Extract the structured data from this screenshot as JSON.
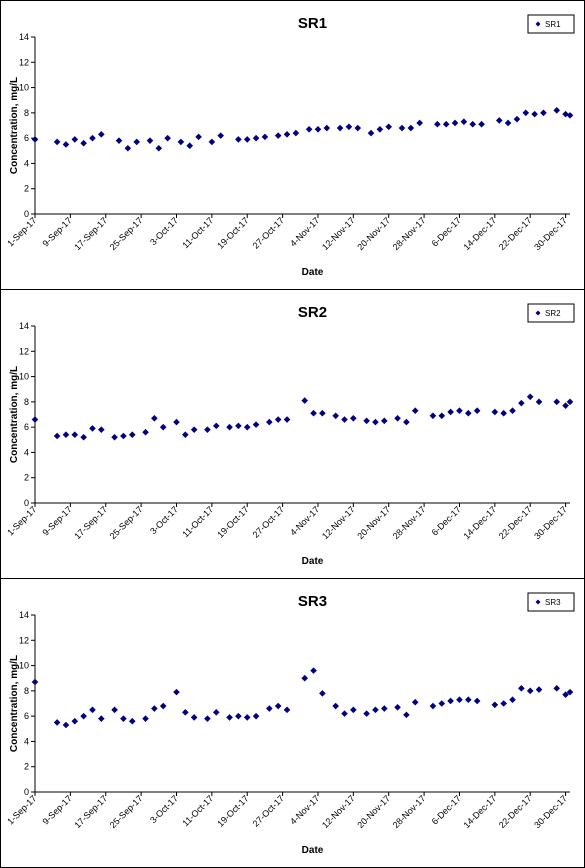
{
  "chart_data": [
    {
      "type": "scatter",
      "title": "SR1",
      "xlabel": "Date",
      "ylabel": "Concentration, mg/L",
      "ylim": [
        0,
        14
      ],
      "yticks": [
        "0",
        "2",
        "4",
        "6",
        "8",
        "10",
        "12",
        "14"
      ],
      "xlim": [
        "2017-09-01",
        "2017-12-31"
      ],
      "xticks": [
        "1-Sep-17",
        "9-Sep-17",
        "17-Sep-17",
        "25-Sep-17",
        "3-Oct-17",
        "11-Oct-17",
        "19-Oct-17",
        "27-Oct-17",
        "4-Nov-17",
        "12-Nov-17",
        "20-Nov-17",
        "28-Nov-17",
        "6-Dec-17",
        "14-Dec-17",
        "22-Dec-17",
        "30-Dec-17"
      ],
      "legend": "top-right",
      "marker_color": "#000080",
      "series": [
        {
          "name": "SR1",
          "points": [
            [
              "2017-09-01",
              5.9
            ],
            [
              "2017-09-06",
              5.7
            ],
            [
              "2017-09-08",
              5.5
            ],
            [
              "2017-09-10",
              5.9
            ],
            [
              "2017-09-12",
              5.6
            ],
            [
              "2017-09-14",
              6.0
            ],
            [
              "2017-09-16",
              6.3
            ],
            [
              "2017-09-20",
              5.8
            ],
            [
              "2017-09-22",
              5.2
            ],
            [
              "2017-09-24",
              5.7
            ],
            [
              "2017-09-27",
              5.8
            ],
            [
              "2017-09-29",
              5.2
            ],
            [
              "2017-10-01",
              6.0
            ],
            [
              "2017-10-04",
              5.7
            ],
            [
              "2017-10-06",
              5.4
            ],
            [
              "2017-10-08",
              6.1
            ],
            [
              "2017-10-11",
              5.7
            ],
            [
              "2017-10-13",
              6.2
            ],
            [
              "2017-10-17",
              5.9
            ],
            [
              "2017-10-19",
              5.9
            ],
            [
              "2017-10-21",
              6.0
            ],
            [
              "2017-10-23",
              6.1
            ],
            [
              "2017-10-26",
              6.2
            ],
            [
              "2017-10-28",
              6.3
            ],
            [
              "2017-10-30",
              6.4
            ],
            [
              "2017-11-02",
              6.7
            ],
            [
              "2017-11-04",
              6.7
            ],
            [
              "2017-11-06",
              6.8
            ],
            [
              "2017-11-09",
              6.8
            ],
            [
              "2017-11-11",
              6.9
            ],
            [
              "2017-11-13",
              6.8
            ],
            [
              "2017-11-16",
              6.4
            ],
            [
              "2017-11-18",
              6.7
            ],
            [
              "2017-11-20",
              6.9
            ],
            [
              "2017-11-23",
              6.8
            ],
            [
              "2017-11-25",
              6.8
            ],
            [
              "2017-11-27",
              7.2
            ],
            [
              "2017-12-01",
              7.1
            ],
            [
              "2017-12-03",
              7.1
            ],
            [
              "2017-12-05",
              7.2
            ],
            [
              "2017-12-07",
              7.3
            ],
            [
              "2017-12-09",
              7.1
            ],
            [
              "2017-12-11",
              7.1
            ],
            [
              "2017-12-15",
              7.4
            ],
            [
              "2017-12-17",
              7.2
            ],
            [
              "2017-12-19",
              7.5
            ],
            [
              "2017-12-21",
              8.0
            ],
            [
              "2017-12-23",
              7.9
            ],
            [
              "2017-12-25",
              8.0
            ],
            [
              "2017-12-28",
              8.2
            ],
            [
              "2017-12-30",
              7.9
            ],
            [
              "2017-12-31",
              7.8
            ]
          ]
        }
      ]
    },
    {
      "type": "scatter",
      "title": "SR2",
      "xlabel": "Date",
      "ylabel": "Concentration, mg/L",
      "ylim": [
        0,
        14
      ],
      "yticks": [
        "0",
        "2",
        "4",
        "6",
        "8",
        "10",
        "12",
        "14"
      ],
      "xlim": [
        "2017-09-01",
        "2017-12-31"
      ],
      "xticks": [
        "1-Sep-17",
        "9-Sep-17",
        "17-Sep-17",
        "25-Sep-17",
        "3-Oct-17",
        "11-Oct-17",
        "19-Oct-17",
        "27-Oct-17",
        "4-Nov-17",
        "12-Nov-17",
        "20-Nov-17",
        "28-Nov-17",
        "6-Dec-17",
        "14-Dec-17",
        "22-Dec-17",
        "30-Dec-17"
      ],
      "legend": "top-right",
      "marker_color": "#000080",
      "series": [
        {
          "name": "SR2",
          "points": [
            [
              "2017-09-01",
              6.6
            ],
            [
              "2017-09-06",
              5.3
            ],
            [
              "2017-09-08",
              5.4
            ],
            [
              "2017-09-10",
              5.4
            ],
            [
              "2017-09-12",
              5.2
            ],
            [
              "2017-09-14",
              5.9
            ],
            [
              "2017-09-16",
              5.8
            ],
            [
              "2017-09-19",
              5.2
            ],
            [
              "2017-09-21",
              5.3
            ],
            [
              "2017-09-23",
              5.4
            ],
            [
              "2017-09-26",
              5.6
            ],
            [
              "2017-09-28",
              6.7
            ],
            [
              "2017-09-30",
              6.0
            ],
            [
              "2017-10-03",
              6.4
            ],
            [
              "2017-10-05",
              5.4
            ],
            [
              "2017-10-07",
              5.8
            ],
            [
              "2017-10-10",
              5.8
            ],
            [
              "2017-10-12",
              6.1
            ],
            [
              "2017-10-15",
              6.0
            ],
            [
              "2017-10-17",
              6.1
            ],
            [
              "2017-10-19",
              6.0
            ],
            [
              "2017-10-21",
              6.2
            ],
            [
              "2017-10-24",
              6.4
            ],
            [
              "2017-10-26",
              6.6
            ],
            [
              "2017-10-28",
              6.6
            ],
            [
              "2017-11-01",
              8.1
            ],
            [
              "2017-11-03",
              7.1
            ],
            [
              "2017-11-05",
              7.1
            ],
            [
              "2017-11-08",
              6.9
            ],
            [
              "2017-11-10",
              6.6
            ],
            [
              "2017-11-12",
              6.7
            ],
            [
              "2017-11-15",
              6.5
            ],
            [
              "2017-11-17",
              6.4
            ],
            [
              "2017-11-19",
              6.5
            ],
            [
              "2017-11-22",
              6.7
            ],
            [
              "2017-11-24",
              6.4
            ],
            [
              "2017-11-26",
              7.3
            ],
            [
              "2017-11-30",
              6.9
            ],
            [
              "2017-12-02",
              6.9
            ],
            [
              "2017-12-04",
              7.2
            ],
            [
              "2017-12-06",
              7.3
            ],
            [
              "2017-12-08",
              7.1
            ],
            [
              "2017-12-10",
              7.3
            ],
            [
              "2017-12-14",
              7.2
            ],
            [
              "2017-12-16",
              7.1
            ],
            [
              "2017-12-18",
              7.3
            ],
            [
              "2017-12-20",
              7.9
            ],
            [
              "2017-12-22",
              8.4
            ],
            [
              "2017-12-24",
              8.0
            ],
            [
              "2017-12-28",
              8.0
            ],
            [
              "2017-12-30",
              7.7
            ],
            [
              "2017-12-31",
              8.0
            ]
          ]
        }
      ]
    },
    {
      "type": "scatter",
      "title": "SR3",
      "xlabel": "Date",
      "ylabel": "Concentration, mg/L",
      "ylim": [
        0,
        14
      ],
      "yticks": [
        "0",
        "2",
        "4",
        "6",
        "8",
        "10",
        "12",
        "14"
      ],
      "xlim": [
        "2017-09-01",
        "2017-12-31"
      ],
      "xticks": [
        "1-Sep-17",
        "9-Sep-17",
        "17-Sep-17",
        "25-Sep-17",
        "3-Oct-17",
        "11-Oct-17",
        "19-Oct-17",
        "27-Oct-17",
        "4-Nov-17",
        "12-Nov-17",
        "20-Nov-17",
        "28-Nov-17",
        "6-Dec-17",
        "14-Dec-17",
        "22-Dec-17",
        "30-Dec-17"
      ],
      "legend": "top-right",
      "marker_color": "#000080",
      "series": [
        {
          "name": "SR3",
          "points": [
            [
              "2017-09-01",
              8.7
            ],
            [
              "2017-09-06",
              5.5
            ],
            [
              "2017-09-08",
              5.3
            ],
            [
              "2017-09-10",
              5.6
            ],
            [
              "2017-09-12",
              6.0
            ],
            [
              "2017-09-14",
              6.5
            ],
            [
              "2017-09-16",
              5.8
            ],
            [
              "2017-09-19",
              6.5
            ],
            [
              "2017-09-21",
              5.8
            ],
            [
              "2017-09-23",
              5.6
            ],
            [
              "2017-09-26",
              5.8
            ],
            [
              "2017-09-28",
              6.6
            ],
            [
              "2017-09-30",
              6.8
            ],
            [
              "2017-10-03",
              7.9
            ],
            [
              "2017-10-05",
              6.3
            ],
            [
              "2017-10-07",
              5.9
            ],
            [
              "2017-10-10",
              5.8
            ],
            [
              "2017-10-12",
              6.3
            ],
            [
              "2017-10-15",
              5.9
            ],
            [
              "2017-10-17",
              6.0
            ],
            [
              "2017-10-19",
              5.9
            ],
            [
              "2017-10-21",
              6.0
            ],
            [
              "2017-10-24",
              6.6
            ],
            [
              "2017-10-26",
              6.8
            ],
            [
              "2017-10-28",
              6.5
            ],
            [
              "2017-11-01",
              9.0
            ],
            [
              "2017-11-03",
              9.6
            ],
            [
              "2017-11-05",
              7.8
            ],
            [
              "2017-11-08",
              6.8
            ],
            [
              "2017-11-10",
              6.2
            ],
            [
              "2017-11-12",
              6.5
            ],
            [
              "2017-11-15",
              6.2
            ],
            [
              "2017-11-17",
              6.5
            ],
            [
              "2017-11-19",
              6.6
            ],
            [
              "2017-11-22",
              6.7
            ],
            [
              "2017-11-24",
              6.1
            ],
            [
              "2017-11-26",
              7.1
            ],
            [
              "2017-11-30",
              6.8
            ],
            [
              "2017-12-02",
              7.0
            ],
            [
              "2017-12-04",
              7.2
            ],
            [
              "2017-12-06",
              7.3
            ],
            [
              "2017-12-08",
              7.3
            ],
            [
              "2017-12-10",
              7.2
            ],
            [
              "2017-12-14",
              6.9
            ],
            [
              "2017-12-16",
              7.0
            ],
            [
              "2017-12-18",
              7.3
            ],
            [
              "2017-12-20",
              8.2
            ],
            [
              "2017-12-22",
              8.0
            ],
            [
              "2017-12-24",
              8.1
            ],
            [
              "2017-12-28",
              8.2
            ],
            [
              "2017-12-30",
              7.7
            ],
            [
              "2017-12-31",
              7.9
            ]
          ]
        }
      ]
    }
  ]
}
